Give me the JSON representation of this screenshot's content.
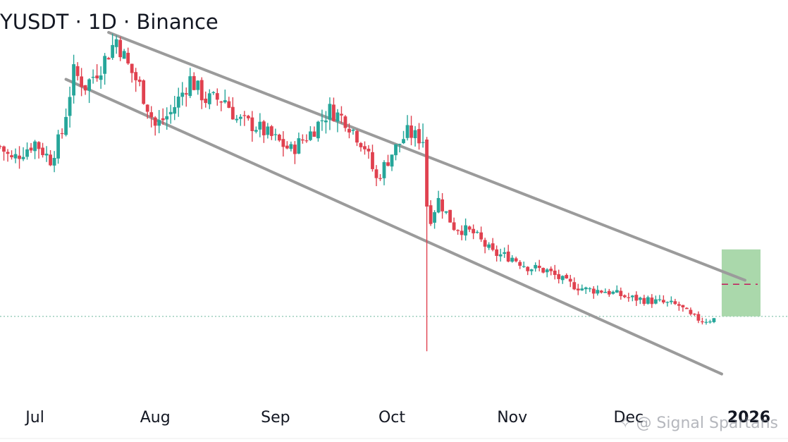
{
  "title": "YUSDT · 1D · Binance",
  "watermark": "@ Signal Spartans",
  "colors": {
    "up": "#26a69a",
    "down": "#e0414f",
    "channel": "#9b9b9b",
    "box": "#a5d6a7",
    "price_line": "#7fbfa8",
    "target_line": "#c2185b"
  },
  "chart_data": {
    "type": "candlestick",
    "title": "YUSDT · 1D · Binance",
    "x_ticks": [
      "Jul",
      "Aug",
      "Sep",
      "Oct",
      "Nov",
      "Dec",
      "2026"
    ],
    "x_range": [
      "2025-06-22",
      "2026-01-06"
    ],
    "y_range": [
      0.5,
      3.5
    ],
    "anchors": [
      [
        "2025-06-22",
        2.45
      ],
      [
        "2025-06-25",
        2.35
      ],
      [
        "2025-07-01",
        2.48
      ],
      [
        "2025-07-05",
        2.35
      ],
      [
        "2025-07-08",
        2.55
      ],
      [
        "2025-07-11",
        3.0
      ],
      [
        "2025-07-14",
        2.9
      ],
      [
        "2025-07-18",
        3.05
      ],
      [
        "2025-07-22",
        3.25
      ],
      [
        "2025-07-25",
        3.05
      ],
      [
        "2025-07-28",
        2.9
      ],
      [
        "2025-08-01",
        2.6
      ],
      [
        "2025-08-05",
        2.7
      ],
      [
        "2025-08-10",
        2.95
      ],
      [
        "2025-08-14",
        2.8
      ],
      [
        "2025-08-19",
        2.8
      ],
      [
        "2025-08-22",
        2.65
      ],
      [
        "2025-08-27",
        2.6
      ],
      [
        "2025-09-01",
        2.5
      ],
      [
        "2025-09-05",
        2.42
      ],
      [
        "2025-09-10",
        2.55
      ],
      [
        "2025-09-15",
        2.72
      ],
      [
        "2025-09-19",
        2.65
      ],
      [
        "2025-09-24",
        2.45
      ],
      [
        "2025-09-27",
        2.2
      ],
      [
        "2025-10-01",
        2.4
      ],
      [
        "2025-10-05",
        2.55
      ],
      [
        "2025-10-09",
        2.5
      ],
      [
        "2025-10-10",
        1.85
      ],
      [
        "2025-10-13",
        2.05
      ],
      [
        "2025-10-17",
        1.85
      ],
      [
        "2025-10-22",
        1.8
      ],
      [
        "2025-10-27",
        1.65
      ],
      [
        "2025-11-01",
        1.62
      ],
      [
        "2025-11-05",
        1.55
      ],
      [
        "2025-11-10",
        1.52
      ],
      [
        "2025-11-15",
        1.43
      ],
      [
        "2025-11-20",
        1.38
      ],
      [
        "2025-11-25",
        1.37
      ],
      [
        "2025-12-01",
        1.32
      ],
      [
        "2025-12-06",
        1.3
      ],
      [
        "2025-12-10",
        1.28
      ],
      [
        "2025-12-14",
        1.26
      ],
      [
        "2025-12-17",
        1.18
      ],
      [
        "2025-12-20",
        1.15
      ],
      [
        "2025-12-23",
        1.16
      ]
    ],
    "events": {
      "wick_spike": {
        "date": "2025-10-10",
        "low": 0.92
      }
    },
    "channel_upper": [
      [
        "2025-07-20",
        3.3
      ],
      [
        "2025-12-31",
        1.45
      ]
    ],
    "channel_lower": [
      [
        "2025-07-09",
        2.95
      ],
      [
        "2025-12-25",
        0.75
      ]
    ],
    "current_price": 1.18,
    "target_box": {
      "from": "2025-12-25",
      "to": "2026-01-04",
      "low": 1.18,
      "high": 1.68
    },
    "target_price": 1.42,
    "grid": false,
    "legend": "none"
  }
}
